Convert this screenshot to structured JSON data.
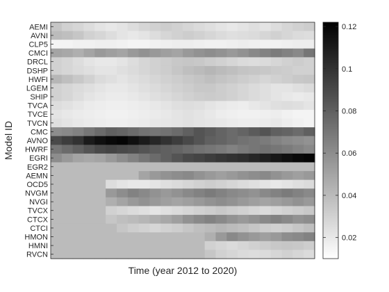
{
  "chart_data": {
    "type": "heatmap",
    "xlabel": "Time (year 2012 to 2020)",
    "ylabel": "Model ID",
    "rows": [
      "AEMI",
      "AVNI",
      "CLP5",
      "CMCI",
      "DRCL",
      "DSHP",
      "HWFI",
      "LGEM",
      "SHIP",
      "TVCA",
      "TVCE",
      "TVCN",
      "CMC",
      "AVNO",
      "HWRF",
      "EGRI",
      "EGR2",
      "AEMN",
      "OCD5",
      "NVGM",
      "NVGI",
      "TVCX",
      "CTCX",
      "CTCI",
      "HMON",
      "HMNI",
      "RVCN"
    ],
    "n_time_steps": 24,
    "colorbar": {
      "min": 0.01,
      "max": 0.122,
      "ticks": [
        0.02,
        0.04,
        0.06,
        0.08,
        0.1,
        0.12
      ],
      "tick_labels": [
        "0.02",
        "0.04",
        "0.06",
        "0.08",
        "0.1",
        "0.12"
      ],
      "colormap": "gray-reversed"
    },
    "values": [
      [
        0.035,
        0.03,
        0.028,
        0.025,
        0.022,
        0.02,
        0.022,
        0.025,
        0.028,
        0.03,
        0.032,
        0.03,
        0.028,
        0.026,
        0.024,
        0.022,
        0.02,
        0.022,
        0.024,
        0.022,
        0.025,
        0.028,
        0.03,
        0.032
      ],
      [
        0.04,
        0.038,
        0.035,
        0.03,
        0.028,
        0.025,
        0.022,
        0.02,
        0.022,
        0.025,
        0.028,
        0.03,
        0.032,
        0.03,
        0.028,
        0.026,
        0.024,
        0.025,
        0.026,
        0.028,
        0.03,
        0.028,
        0.026,
        0.025
      ],
      [
        0.015,
        0.015,
        0.016,
        0.016,
        0.017,
        0.017,
        0.016,
        0.015,
        0.015,
        0.016,
        0.017,
        0.018,
        0.018,
        0.017,
        0.016,
        0.016,
        0.017,
        0.018,
        0.017,
        0.016,
        0.016,
        0.017,
        0.018,
        0.018
      ],
      [
        0.05,
        0.048,
        0.045,
        0.05,
        0.055,
        0.052,
        0.05,
        0.055,
        0.058,
        0.055,
        0.052,
        0.05,
        0.055,
        0.058,
        0.06,
        0.058,
        0.055,
        0.058,
        0.062,
        0.065,
        0.068,
        0.065,
        0.062,
        0.07
      ],
      [
        0.03,
        0.028,
        0.025,
        0.022,
        0.02,
        0.02,
        0.022,
        0.025,
        0.028,
        0.03,
        0.032,
        0.034,
        0.035,
        0.034,
        0.032,
        0.03,
        0.028,
        0.026,
        0.025,
        0.026,
        0.028,
        0.03,
        0.032,
        0.03
      ],
      [
        0.03,
        0.028,
        0.026,
        0.024,
        0.022,
        0.022,
        0.024,
        0.026,
        0.028,
        0.03,
        0.032,
        0.035,
        0.038,
        0.04,
        0.042,
        0.04,
        0.038,
        0.036,
        0.035,
        0.034,
        0.033,
        0.032,
        0.03,
        0.03
      ],
      [
        0.042,
        0.038,
        0.034,
        0.03,
        0.026,
        0.024,
        0.022,
        0.024,
        0.026,
        0.028,
        0.03,
        0.032,
        0.034,
        0.036,
        0.038,
        0.036,
        0.034,
        0.032,
        0.03,
        0.028,
        0.03,
        0.032,
        0.034,
        0.035
      ],
      [
        0.03,
        0.028,
        0.026,
        0.024,
        0.022,
        0.02,
        0.02,
        0.022,
        0.024,
        0.026,
        0.028,
        0.03,
        0.032,
        0.034,
        0.034,
        0.032,
        0.03,
        0.028,
        0.026,
        0.024,
        0.022,
        0.022,
        0.024,
        0.026
      ],
      [
        0.03,
        0.028,
        0.025,
        0.022,
        0.02,
        0.019,
        0.019,
        0.02,
        0.022,
        0.024,
        0.026,
        0.028,
        0.03,
        0.032,
        0.033,
        0.032,
        0.03,
        0.028,
        0.026,
        0.024,
        0.022,
        0.02,
        0.019,
        0.02
      ],
      [
        0.025,
        0.023,
        0.021,
        0.019,
        0.018,
        0.017,
        0.017,
        0.018,
        0.019,
        0.02,
        0.022,
        0.024,
        0.025,
        0.024,
        0.022,
        0.02,
        0.019,
        0.018,
        0.02,
        0.022,
        0.024,
        0.025,
        0.024,
        0.022
      ],
      [
        0.022,
        0.02,
        0.019,
        0.018,
        0.017,
        0.016,
        0.016,
        0.017,
        0.018,
        0.019,
        0.02,
        0.022,
        0.023,
        0.022,
        0.02,
        0.018,
        0.017,
        0.016,
        0.016,
        0.017,
        0.018,
        0.016,
        0.015,
        0.015
      ],
      [
        0.024,
        0.022,
        0.02,
        0.019,
        0.018,
        0.017,
        0.017,
        0.018,
        0.019,
        0.02,
        0.021,
        0.022,
        0.023,
        0.022,
        0.021,
        0.02,
        0.019,
        0.018,
        0.018,
        0.019,
        0.02,
        0.018,
        0.016,
        0.015
      ],
      [
        0.06,
        0.062,
        0.065,
        0.07,
        0.075,
        0.08,
        0.078,
        0.075,
        0.072,
        0.07,
        0.072,
        0.075,
        0.08,
        0.085,
        0.082,
        0.078,
        0.075,
        0.078,
        0.082,
        0.085,
        0.08,
        0.078,
        0.075,
        0.08
      ],
      [
        0.09,
        0.095,
        0.1,
        0.11,
        0.115,
        0.118,
        0.12,
        0.115,
        0.11,
        0.105,
        0.1,
        0.095,
        0.09,
        0.085,
        0.08,
        0.078,
        0.075,
        0.072,
        0.07,
        0.068,
        0.065,
        0.062,
        0.06,
        0.058
      ],
      [
        0.07,
        0.075,
        0.08,
        0.085,
        0.09,
        0.092,
        0.09,
        0.088,
        0.085,
        0.082,
        0.08,
        0.078,
        0.075,
        0.072,
        0.07,
        0.068,
        0.065,
        0.068,
        0.07,
        0.072,
        0.07,
        0.068,
        0.065,
        0.062
      ],
      [
        0.06,
        0.055,
        0.05,
        0.048,
        0.05,
        0.055,
        0.06,
        0.065,
        0.07,
        0.075,
        0.08,
        0.085,
        0.09,
        0.092,
        0.095,
        0.098,
        0.1,
        0.102,
        0.105,
        0.108,
        0.112,
        0.115,
        0.118,
        0.12
      ],
      [
        0.04,
        0.04,
        0.04,
        0.04,
        0.04,
        0.04,
        0.04,
        0.04,
        0.04,
        0.04,
        0.04,
        0.04,
        0.04,
        0.04,
        0.04,
        0.04,
        0.04,
        0.04,
        0.04,
        0.04,
        0.04,
        0.04,
        0.04,
        0.04
      ],
      [
        0.04,
        0.04,
        0.04,
        0.04,
        0.04,
        0.04,
        0.04,
        0.04,
        0.05,
        0.055,
        0.058,
        0.06,
        0.062,
        0.058,
        0.055,
        0.052,
        0.055,
        0.058,
        0.06,
        0.062,
        0.058,
        0.055,
        0.052,
        0.055
      ],
      [
        0.04,
        0.04,
        0.04,
        0.04,
        0.04,
        0.025,
        0.022,
        0.02,
        0.02,
        0.022,
        0.024,
        0.026,
        0.028,
        0.03,
        0.032,
        0.03,
        0.028,
        0.026,
        0.024,
        0.022,
        0.02,
        0.022,
        0.024,
        0.026
      ],
      [
        0.04,
        0.04,
        0.04,
        0.04,
        0.04,
        0.055,
        0.06,
        0.065,
        0.062,
        0.058,
        0.055,
        0.058,
        0.062,
        0.065,
        0.068,
        0.065,
        0.062,
        0.06,
        0.058,
        0.062,
        0.065,
        0.068,
        0.065,
        0.062
      ],
      [
        0.04,
        0.04,
        0.04,
        0.04,
        0.04,
        0.045,
        0.05,
        0.055,
        0.058,
        0.055,
        0.052,
        0.05,
        0.052,
        0.055,
        0.058,
        0.06,
        0.058,
        0.055,
        0.052,
        0.05,
        0.052,
        0.055,
        0.058,
        0.055
      ],
      [
        0.04,
        0.04,
        0.04,
        0.04,
        0.04,
        0.03,
        0.028,
        0.026,
        0.024,
        0.022,
        0.024,
        0.026,
        0.028,
        0.03,
        0.032,
        0.034,
        0.032,
        0.03,
        0.028,
        0.026,
        0.028,
        0.03,
        0.032,
        0.034
      ],
      [
        0.04,
        0.04,
        0.04,
        0.04,
        0.04,
        0.035,
        0.038,
        0.04,
        0.042,
        0.045,
        0.048,
        0.052,
        0.058,
        0.062,
        0.065,
        0.062,
        0.058,
        0.055,
        0.058,
        0.062,
        0.065,
        0.062,
        0.058,
        0.06
      ],
      [
        0.04,
        0.04,
        0.04,
        0.04,
        0.04,
        0.04,
        0.035,
        0.032,
        0.03,
        0.028,
        0.03,
        0.032,
        0.035,
        0.038,
        0.04,
        0.042,
        0.04,
        0.038,
        0.035,
        0.032,
        0.03,
        0.032,
        0.035,
        0.038
      ],
      [
        0.04,
        0.04,
        0.04,
        0.04,
        0.04,
        0.04,
        0.04,
        0.04,
        0.04,
        0.04,
        0.04,
        0.04,
        0.04,
        0.04,
        0.045,
        0.055,
        0.062,
        0.058,
        0.055,
        0.052,
        0.055,
        0.06,
        0.062,
        0.065
      ],
      [
        0.04,
        0.04,
        0.04,
        0.04,
        0.04,
        0.04,
        0.04,
        0.04,
        0.04,
        0.04,
        0.04,
        0.04,
        0.04,
        0.04,
        0.03,
        0.028,
        0.026,
        0.028,
        0.03,
        0.032,
        0.034,
        0.035,
        0.034,
        0.032
      ],
      [
        0.04,
        0.04,
        0.04,
        0.04,
        0.04,
        0.04,
        0.04,
        0.04,
        0.04,
        0.04,
        0.04,
        0.04,
        0.04,
        0.04,
        0.035,
        0.03,
        0.028,
        0.026,
        0.025,
        0.026,
        0.028,
        0.03,
        0.028,
        0.026
      ]
    ]
  }
}
